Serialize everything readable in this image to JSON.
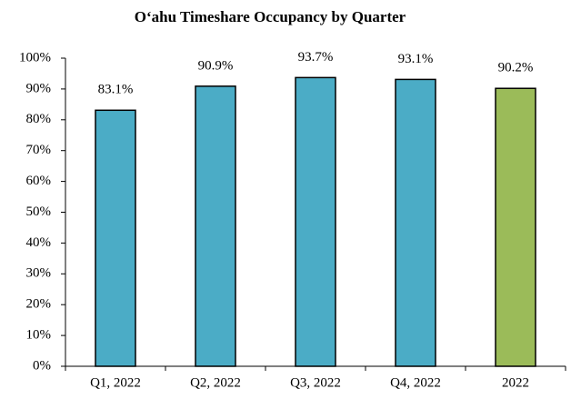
{
  "chart_data": {
    "type": "bar",
    "title": "O‘ahu Timeshare Occupancy by Quarter",
    "categories": [
      "Q1, 2022",
      "Q2, 2022",
      "Q3, 2022",
      "Q4, 2022",
      "2022"
    ],
    "values": [
      83.1,
      90.9,
      93.7,
      93.1,
      90.2
    ],
    "value_labels": [
      "83.1%",
      "90.9%",
      "93.7%",
      "93.1%",
      "90.2%"
    ],
    "colors": [
      "#4bacc6",
      "#4bacc6",
      "#4bacc6",
      "#4bacc6",
      "#9bbb59"
    ],
    "ylim": [
      0,
      100
    ],
    "yticks": [
      {
        "value": 0,
        "label": "0%"
      },
      {
        "value": 10,
        "label": "10%"
      },
      {
        "value": 20,
        "label": "20%"
      },
      {
        "value": 30,
        "label": "30%"
      },
      {
        "value": 40,
        "label": "40%"
      },
      {
        "value": 50,
        "label": "50%"
      },
      {
        "value": 60,
        "label": "60%"
      },
      {
        "value": 70,
        "label": "70%"
      },
      {
        "value": 80,
        "label": "80%"
      },
      {
        "value": 90,
        "label": "90%"
      },
      {
        "value": 100,
        "label": "100%"
      }
    ],
    "grid": false
  }
}
